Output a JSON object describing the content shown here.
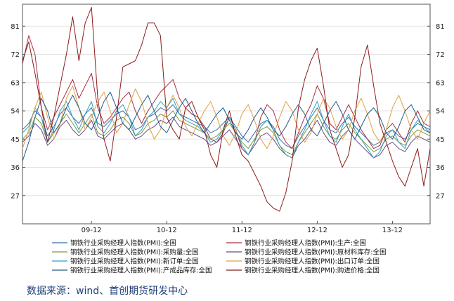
{
  "chart_data": {
    "type": "line",
    "title": "",
    "xlabel": "",
    "ylabel": "",
    "ylim": [
      18,
      88
    ],
    "y_ticks": [
      27,
      36,
      45,
      54,
      63,
      72,
      81
    ],
    "x_ticks": [
      "09-12",
      "10-12",
      "11-12",
      "12-12",
      "13-12"
    ],
    "grid": true,
    "legend_position": "bottom",
    "x": [
      "09-01",
      "09-02",
      "09-03",
      "09-04",
      "09-05",
      "09-06",
      "09-07",
      "09-08",
      "09-09",
      "09-10",
      "09-11",
      "09-12",
      "10-01",
      "10-02",
      "10-03",
      "10-04",
      "10-05",
      "10-06",
      "10-07",
      "10-08",
      "10-09",
      "10-10",
      "10-11",
      "10-12",
      "11-01",
      "11-02",
      "11-03",
      "11-04",
      "11-05",
      "11-06",
      "11-07",
      "11-08",
      "11-09",
      "11-10",
      "11-11",
      "11-12",
      "12-01",
      "12-02",
      "12-03",
      "12-04",
      "12-05",
      "12-06",
      "12-07",
      "12-08",
      "12-09",
      "12-10",
      "12-11",
      "12-12",
      "13-01",
      "13-02",
      "13-03",
      "13-04",
      "13-05",
      "13-06",
      "13-07",
      "13-08",
      "13-09",
      "13-10",
      "13-11",
      "13-12",
      "14-01",
      "14-02",
      "14-03",
      "14-04",
      "14-05",
      "14-06"
    ],
    "series": [
      {
        "name": "钢铁行业采购经理人指数(PMI):全国",
        "color": "#3b6fb0",
        "values": [
          48,
          50,
          54,
          52,
          46,
          49,
          53,
          55,
          52,
          50,
          53,
          55,
          50,
          49,
          51,
          53,
          54,
          52,
          48,
          49,
          52,
          53,
          55,
          54,
          56,
          53,
          52,
          51,
          50,
          49,
          47,
          48,
          50,
          52,
          49,
          46,
          44,
          47,
          50,
          51,
          49,
          45,
          43,
          42,
          46,
          49,
          52,
          55,
          51,
          48,
          47,
          50,
          52,
          49,
          47,
          45,
          43,
          44,
          47,
          48,
          46,
          45,
          48,
          50,
          49,
          48
        ]
      },
      {
        "name": "钢铁行业采购经理人指数(PMI):生产:全国",
        "color": "#a23040",
        "values": [
          69,
          78,
          72,
          55,
          48,
          52,
          56,
          60,
          64,
          58,
          62,
          66,
          55,
          50,
          52,
          55,
          58,
          60,
          54,
          50,
          54,
          57,
          60,
          62,
          64,
          58,
          55,
          53,
          52,
          49,
          45,
          44,
          47,
          52,
          48,
          42,
          40,
          44,
          52,
          56,
          54,
          48,
          44,
          42,
          47,
          52,
          56,
          62,
          58,
          50,
          48,
          52,
          56,
          52,
          48,
          45,
          42,
          43,
          48,
          50,
          47,
          44,
          50,
          54,
          50,
          49
        ]
      },
      {
        "name": "钢铁行业采购经理人指数(PMI):采购量:全国",
        "color": "#7a9a3a",
        "values": [
          45,
          47,
          52,
          50,
          44,
          47,
          50,
          53,
          50,
          47,
          50,
          53,
          47,
          46,
          48,
          51,
          52,
          50,
          46,
          47,
          50,
          51,
          53,
          52,
          54,
          51,
          50,
          49,
          48,
          47,
          45,
          46,
          48,
          50,
          47,
          44,
          42,
          45,
          48,
          49,
          47,
          43,
          41,
          40,
          44,
          47,
          50,
          53,
          49,
          46,
          45,
          48,
          50,
          47,
          45,
          43,
          41,
          42,
          45,
          46,
          44,
          43,
          46,
          48,
          47,
          46
        ]
      },
      {
        "name": "钢铁行业采购经理人指数(PMI):原材料库存:全国",
        "color": "#6a4a8a",
        "values": [
          44,
          46,
          50,
          48,
          43,
          45,
          49,
          51,
          48,
          46,
          48,
          51,
          46,
          45,
          47,
          49,
          50,
          48,
          45,
          46,
          48,
          49,
          51,
          50,
          52,
          49,
          48,
          47,
          46,
          45,
          43,
          44,
          46,
          48,
          45,
          42,
          40,
          43,
          46,
          47,
          45,
          42,
          40,
          39,
          43,
          45,
          48,
          51,
          47,
          44,
          43,
          46,
          48,
          45,
          43,
          41,
          39,
          40,
          43,
          44,
          42,
          41,
          44,
          46,
          45,
          44
        ]
      },
      {
        "name": "钢铁行业采购经理人指数(PMI):新订单:全国",
        "color": "#30a0c0",
        "values": [
          47,
          49,
          55,
          52,
          44,
          48,
          54,
          57,
          52,
          48,
          53,
          57,
          49,
          47,
          50,
          54,
          56,
          52,
          46,
          48,
          52,
          54,
          57,
          55,
          58,
          53,
          51,
          50,
          49,
          47,
          44,
          45,
          48,
          52,
          48,
          43,
          40,
          44,
          49,
          51,
          48,
          43,
          40,
          39,
          44,
          48,
          53,
          57,
          51,
          46,
          44,
          49,
          53,
          48,
          45,
          42,
          39,
          41,
          46,
          48,
          44,
          42,
          48,
          51,
          49,
          47
        ]
      },
      {
        "name": "钢铁行业采购经理人指数(PMI):出口订单:全国",
        "color": "#e0a040",
        "values": [
          42,
          48,
          55,
          60,
          52,
          45,
          50,
          58,
          62,
          55,
          48,
          52,
          57,
          60,
          54,
          47,
          50,
          56,
          61,
          57,
          50,
          45,
          48,
          55,
          59,
          55,
          49,
          46,
          50,
          54,
          57,
          52,
          46,
          43,
          47,
          53,
          56,
          51,
          45,
          42,
          46,
          52,
          57,
          54,
          48,
          44,
          47,
          53,
          58,
          55,
          49,
          45,
          48,
          54,
          58,
          53,
          47,
          44,
          48,
          55,
          59,
          54,
          48,
          45,
          50,
          54
        ]
      },
      {
        "name": "钢铁行业采购经理人指数(PMI):产成品库存:全国",
        "color": "#1f5a8c",
        "values": [
          38,
          44,
          52,
          58,
          54,
          47,
          50,
          55,
          59,
          55,
          50,
          48,
          52,
          57,
          60,
          55,
          50,
          48,
          52,
          56,
          59,
          54,
          49,
          47,
          51,
          55,
          58,
          54,
          50,
          47,
          50,
          53,
          55,
          51,
          47,
          45,
          48,
          52,
          55,
          52,
          48,
          46,
          49,
          53,
          56,
          53,
          48,
          46,
          50,
          54,
          57,
          53,
          48,
          45,
          49,
          53,
          55,
          52,
          47,
          45,
          49,
          54,
          56,
          52,
          48,
          47
        ]
      },
      {
        "name": "钢铁行业采购经理人指数(PMI):购进价格:全国",
        "color": "#8c1a1a",
        "values": [
          70,
          76,
          66,
          55,
          44,
          52,
          62,
          72,
          84,
          70,
          82,
          87,
          58,
          45,
          38,
          52,
          68,
          69,
          70,
          75,
          82,
          82,
          78,
          52,
          48,
          45,
          55,
          57,
          52,
          48,
          40,
          36,
          48,
          54,
          46,
          40,
          38,
          34,
          30,
          25,
          23,
          22,
          28,
          38,
          55,
          64,
          70,
          74,
          62,
          48,
          42,
          36,
          40,
          52,
          68,
          75,
          62,
          50,
          44,
          38,
          33,
          30,
          36,
          42,
          30,
          42
        ]
      }
    ]
  },
  "legend": [
    "钢铁行业采购经理人指数(PMI):全国",
    "钢铁行业采购经理人指数(PMI):生产:全国",
    "钢铁行业采购经理人指数(PMI):采购量:全国",
    "钢铁行业采购经理人指数(PMI):原材料库存:全国",
    "钢铁行业采购经理人指数(PMI):新订单:全国",
    "钢铁行业采购经理人指数(PMI):出口订单:全国",
    "钢铁行业采购经理人指数(PMI):产成品库存:全国",
    "钢铁行业采购经理人指数(PMI):购进价格:全国"
  ],
  "source_text": "数据来源：wind、首创期货研发中心"
}
